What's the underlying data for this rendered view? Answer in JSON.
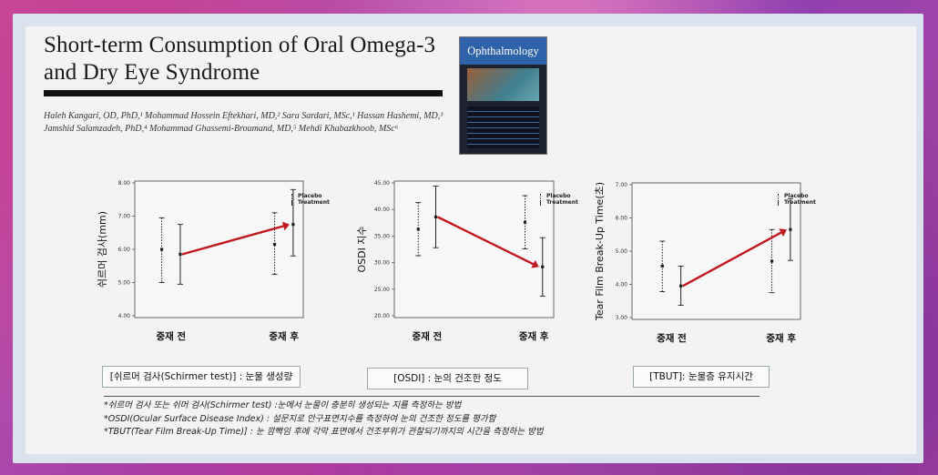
{
  "article": {
    "title_line1": "Short-term Consumption of Oral Omega-3",
    "title_line2": "and Dry Eye Syndrome",
    "authors_line1": "Haleh Kangari, OD, PhD,¹ Mohammad Hossein Eftekhari, MD,² Sara Sardari, MSc,¹ Hassan Hashemi, MD,³",
    "authors_line2": "Jamshid Salamzadeh, PhD,⁴ Mohammad Ghassemi-Broumand, MD,⁵ Mehdi Khabazkhoob, MSc⁶"
  },
  "journal": {
    "name": "Ophthalmology"
  },
  "legend": {
    "placebo": "Placebo",
    "treatment": "Treatment"
  },
  "chart_data": [
    {
      "type": "errorbar",
      "ylabel": "쉬르머 검사(mm)",
      "categories": [
        "중재 전",
        "중재 후"
      ],
      "yticks": [
        "4.00",
        "5.00",
        "6.00",
        "7.00",
        "8.00"
      ],
      "ylim": [
        4,
        8
      ],
      "series": [
        {
          "name": "Placebo",
          "mean": [
            6.0,
            6.15
          ],
          "low": [
            5.0,
            5.25
          ],
          "high": [
            6.95,
            7.1
          ]
        },
        {
          "name": "Treatment",
          "mean": [
            5.85,
            6.75
          ],
          "low": [
            4.95,
            5.8
          ],
          "high": [
            6.75,
            7.8
          ]
        }
      ],
      "caption": "[쉬르머 검사(Schirmer test)] : 눈물 생성량"
    },
    {
      "type": "errorbar",
      "ylabel": "OSDI 지수",
      "categories": [
        "중재 전",
        "중재 후"
      ],
      "yticks": [
        "20.00",
        "25.00",
        "30.00",
        "35.00",
        "40.00",
        "45.00"
      ],
      "ylim": [
        20,
        45
      ],
      "series": [
        {
          "name": "Placebo",
          "mean": [
            36.3,
            37.6
          ],
          "low": [
            31.3,
            32.6
          ],
          "high": [
            41.3,
            42.6
          ]
        },
        {
          "name": "Treatment",
          "mean": [
            38.6,
            29.2
          ],
          "low": [
            32.8,
            23.7
          ],
          "high": [
            44.4,
            34.7
          ]
        }
      ],
      "caption": "[OSDI] : 눈의 건조한 정도"
    },
    {
      "type": "errorbar",
      "ylabel": "Tear Film Break-Up Time(초)",
      "categories": [
        "중재 전",
        "중재 후"
      ],
      "yticks": [
        "3.00",
        "4.00",
        "5.00",
        "6.00",
        "7.00"
      ],
      "ylim": [
        3,
        7
      ],
      "series": [
        {
          "name": "Placebo",
          "mean": [
            4.55,
            4.7
          ],
          "low": [
            3.78,
            3.75
          ],
          "high": [
            5.3,
            5.65
          ]
        },
        {
          "name": "Treatment",
          "mean": [
            3.95,
            5.65
          ],
          "low": [
            3.37,
            4.72
          ],
          "high": [
            4.55,
            6.58
          ]
        }
      ],
      "caption": "[TBUT]: 눈물층 유지시간"
    }
  ],
  "notes": [
    "*쉬르머 검사 또는 쉬머 검사(Schirmer test) :눈에서 눈물이 충분히 생성되는 지를 측정하는 방법",
    "*OSDI(Ocular Surface Disease Index) : 설문지로 안구표면지수를 측정하여 눈의 건조한 정도를 평가함",
    "*TBUT(Tear Film Break-Up Time)] : 눈 깜빡임 후에 각막 표면에서 건조부위가 관찰되기까지의 시간을 측정하는 방법"
  ],
  "colors": {
    "arrow": "#c0181e",
    "ink": "#222222"
  }
}
